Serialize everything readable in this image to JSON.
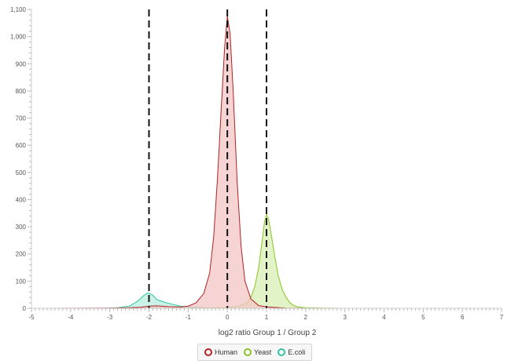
{
  "chart_data": {
    "type": "area",
    "title": "",
    "xlabel": "log2 ratio Group 1 / Group 2",
    "ylabel": "",
    "xlim": [
      -5,
      7
    ],
    "ylim": [
      0,
      1100
    ],
    "x_ticks": [
      -5,
      -4,
      -3,
      -2,
      -1,
      0,
      1,
      2,
      3,
      4,
      5,
      6,
      7
    ],
    "y_ticks": [
      0,
      100,
      200,
      300,
      400,
      500,
      600,
      700,
      800,
      900,
      1000,
      1100
    ],
    "y_tick_labels": [
      "0",
      "100",
      "200",
      "300",
      "400",
      "500",
      "600",
      "700",
      "800",
      "900",
      "1,000",
      "1,100"
    ],
    "reference_lines": [
      -2,
      0,
      1
    ],
    "grid": false,
    "legend_position": "bottom-center",
    "series": [
      {
        "name": "Human",
        "color": "#b22222",
        "fill": "#f4c6c6",
        "x": [
          -4.6,
          -3,
          -2.5,
          -2.2,
          -2,
          -1.8,
          -1.5,
          -1.2,
          -1,
          -0.8,
          -0.6,
          -0.45,
          -0.35,
          -0.25,
          -0.15,
          -0.07,
          0,
          0.07,
          0.15,
          0.25,
          0.35,
          0.45,
          0.6,
          0.8,
          1,
          1.5,
          2,
          3,
          4,
          5,
          6
        ],
        "values": [
          0,
          1,
          2,
          4,
          8,
          9,
          6,
          5,
          8,
          20,
          55,
          130,
          260,
          480,
          750,
          960,
          1075,
          1010,
          800,
          470,
          230,
          100,
          35,
          10,
          5,
          1,
          0,
          0,
          0,
          0,
          0
        ]
      },
      {
        "name": "Yeast",
        "color": "#88c425",
        "fill": "#d9efb5",
        "x": [
          -4.6,
          -2,
          -1,
          0,
          0.3,
          0.5,
          0.6,
          0.7,
          0.8,
          0.9,
          0.95,
          1,
          1.05,
          1.1,
          1.2,
          1.3,
          1.4,
          1.5,
          1.6,
          1.7,
          1.8,
          2,
          2.5,
          3,
          4,
          5,
          6
        ],
        "values": [
          0,
          0,
          1,
          3,
          8,
          20,
          40,
          80,
          150,
          260,
          320,
          345,
          330,
          290,
          200,
          120,
          70,
          40,
          20,
          10,
          5,
          2,
          1,
          0,
          0,
          0,
          0
        ]
      },
      {
        "name": "E.coli",
        "color": "#2ec4a3",
        "fill": "#b8ede0",
        "x": [
          -4.6,
          -3.2,
          -2.8,
          -2.5,
          -2.3,
          -2.15,
          -2.05,
          -2,
          -1.9,
          -1.8,
          -1.6,
          -1.4,
          -1.2,
          -1,
          -0.6,
          0,
          1,
          2,
          3,
          4,
          5,
          6
        ],
        "values": [
          0,
          0,
          2,
          8,
          25,
          45,
          55,
          56,
          48,
          32,
          22,
          15,
          8,
          5,
          2,
          1,
          0,
          0,
          0,
          0,
          0,
          0
        ]
      }
    ]
  },
  "legend": {
    "items": [
      {
        "label": "Human",
        "color": "#b22222"
      },
      {
        "label": "Yeast",
        "color": "#88c425"
      },
      {
        "label": "E.coli",
        "color": "#2ec4a3"
      }
    ]
  }
}
